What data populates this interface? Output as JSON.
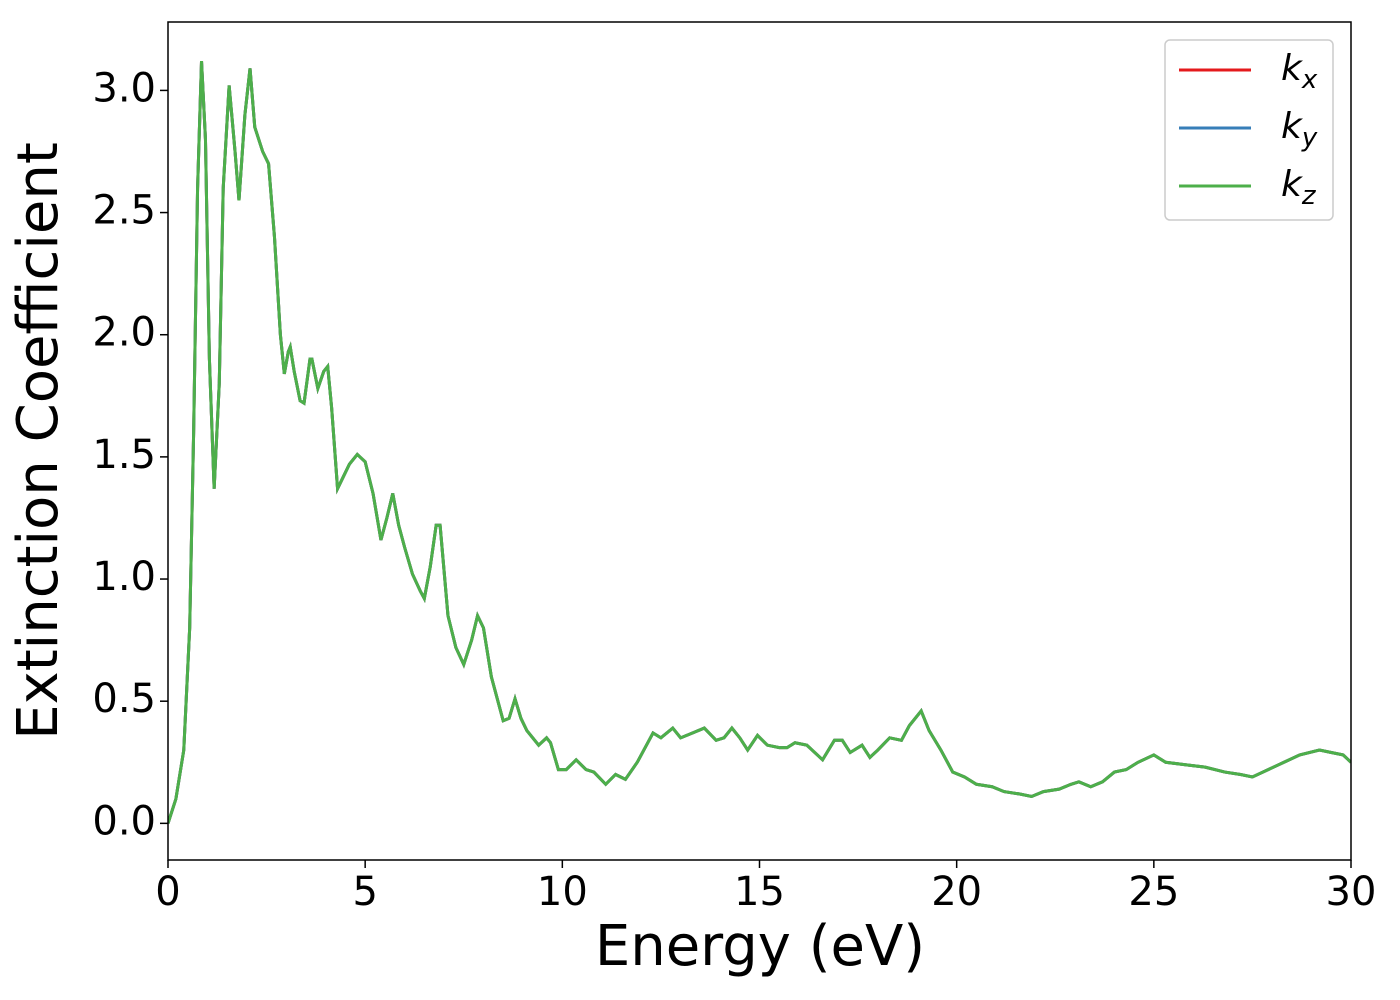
{
  "chart_data": {
    "type": "line",
    "x_label": "Energy (eV)",
    "y_label": "Extinction Coefficient",
    "x": [
      0,
      0.2,
      0.4,
      0.55,
      0.65,
      0.75,
      0.85,
      0.95,
      1.05,
      1.17,
      1.3,
      1.4,
      1.55,
      1.7,
      1.8,
      1.95,
      2.08,
      2.2,
      2.4,
      2.55,
      2.7,
      2.85,
      2.95,
      3.05,
      3.1,
      3.2,
      3.35,
      3.45,
      3.6,
      3.65,
      3.8,
      3.95,
      4.05,
      4.15,
      4.3,
      4.45,
      4.6,
      4.8,
      5.0,
      5.2,
      5.4,
      5.55,
      5.7,
      5.85,
      6.0,
      6.2,
      6.4,
      6.5,
      6.65,
      6.8,
      6.9,
      7.1,
      7.3,
      7.5,
      7.7,
      7.85,
      8.0,
      8.2,
      8.5,
      8.65,
      8.8,
      8.95,
      9.1,
      9.4,
      9.6,
      9.7,
      9.9,
      10.1,
      10.35,
      10.6,
      10.8,
      11.1,
      11.35,
      11.6,
      11.9,
      12.3,
      12.5,
      12.8,
      13.0,
      13.3,
      13.6,
      13.9,
      14.1,
      14.3,
      14.5,
      14.7,
      14.95,
      15.2,
      15.5,
      15.7,
      15.9,
      16.2,
      16.6,
      16.9,
      17.1,
      17.3,
      17.6,
      17.8,
      18.0,
      18.3,
      18.6,
      18.8,
      19.1,
      19.3,
      19.6,
      19.9,
      20.2,
      20.5,
      20.9,
      21.2,
      21.6,
      21.9,
      22.2,
      22.6,
      22.9,
      23.1,
      23.4,
      23.7,
      24.0,
      24.3,
      24.6,
      25.0,
      25.3,
      25.8,
      26.3,
      26.8,
      27.2,
      27.5,
      27.9,
      28.3,
      28.7,
      29.2,
      29.5,
      29.8,
      30.0
    ],
    "series": [
      {
        "name": "kx",
        "color": "#e41a1c",
        "values": [
          0.0,
          0.1,
          0.3,
          0.8,
          1.6,
          2.6,
          3.12,
          2.8,
          1.9,
          1.37,
          1.8,
          2.6,
          3.02,
          2.75,
          2.55,
          2.9,
          3.09,
          2.85,
          2.75,
          2.7,
          2.4,
          2.0,
          1.84,
          1.93,
          1.95,
          1.85,
          1.73,
          1.72,
          1.9,
          1.9,
          1.78,
          1.85,
          1.87,
          1.7,
          1.37,
          1.42,
          1.47,
          1.51,
          1.48,
          1.35,
          1.16,
          1.25,
          1.35,
          1.22,
          1.13,
          1.02,
          0.95,
          0.92,
          1.05,
          1.22,
          1.22,
          0.85,
          0.72,
          0.65,
          0.75,
          0.85,
          0.8,
          0.6,
          0.42,
          0.43,
          0.51,
          0.43,
          0.38,
          0.32,
          0.35,
          0.33,
          0.22,
          0.22,
          0.26,
          0.22,
          0.21,
          0.16,
          0.2,
          0.18,
          0.25,
          0.37,
          0.35,
          0.39,
          0.35,
          0.37,
          0.39,
          0.34,
          0.35,
          0.39,
          0.35,
          0.3,
          0.36,
          0.32,
          0.31,
          0.31,
          0.33,
          0.32,
          0.26,
          0.34,
          0.34,
          0.29,
          0.32,
          0.27,
          0.3,
          0.35,
          0.34,
          0.4,
          0.46,
          0.38,
          0.3,
          0.21,
          0.19,
          0.16,
          0.15,
          0.13,
          0.12,
          0.11,
          0.13,
          0.14,
          0.16,
          0.17,
          0.15,
          0.17,
          0.21,
          0.22,
          0.25,
          0.28,
          0.25,
          0.24,
          0.23,
          0.21,
          0.2,
          0.19,
          0.22,
          0.25,
          0.28,
          0.3,
          0.29,
          0.28,
          0.25
        ]
      },
      {
        "name": "ky",
        "color": "#377eb8",
        "values": [
          0.0,
          0.1,
          0.3,
          0.8,
          1.6,
          2.6,
          3.12,
          2.8,
          1.9,
          1.37,
          1.8,
          2.6,
          3.02,
          2.75,
          2.55,
          2.9,
          3.09,
          2.85,
          2.75,
          2.7,
          2.4,
          2.0,
          1.84,
          1.93,
          1.95,
          1.85,
          1.73,
          1.72,
          1.9,
          1.9,
          1.78,
          1.85,
          1.87,
          1.7,
          1.37,
          1.42,
          1.47,
          1.51,
          1.48,
          1.35,
          1.16,
          1.25,
          1.35,
          1.22,
          1.13,
          1.02,
          0.95,
          0.92,
          1.05,
          1.22,
          1.22,
          0.85,
          0.72,
          0.65,
          0.75,
          0.85,
          0.8,
          0.6,
          0.42,
          0.43,
          0.51,
          0.43,
          0.38,
          0.32,
          0.35,
          0.33,
          0.22,
          0.22,
          0.26,
          0.22,
          0.21,
          0.16,
          0.2,
          0.18,
          0.25,
          0.37,
          0.35,
          0.39,
          0.35,
          0.37,
          0.39,
          0.34,
          0.35,
          0.39,
          0.35,
          0.3,
          0.36,
          0.32,
          0.31,
          0.31,
          0.33,
          0.32,
          0.26,
          0.34,
          0.34,
          0.29,
          0.32,
          0.27,
          0.3,
          0.35,
          0.34,
          0.4,
          0.46,
          0.38,
          0.3,
          0.21,
          0.19,
          0.16,
          0.15,
          0.13,
          0.12,
          0.11,
          0.13,
          0.14,
          0.16,
          0.17,
          0.15,
          0.17,
          0.21,
          0.22,
          0.25,
          0.28,
          0.25,
          0.24,
          0.23,
          0.21,
          0.2,
          0.19,
          0.22,
          0.25,
          0.28,
          0.3,
          0.29,
          0.28,
          0.25
        ]
      },
      {
        "name": "kz",
        "color": "#4daf4a",
        "values": [
          0.0,
          0.1,
          0.3,
          0.8,
          1.6,
          2.6,
          3.12,
          2.8,
          1.9,
          1.37,
          1.8,
          2.6,
          3.02,
          2.75,
          2.55,
          2.9,
          3.09,
          2.85,
          2.75,
          2.7,
          2.4,
          2.0,
          1.84,
          1.93,
          1.95,
          1.85,
          1.73,
          1.72,
          1.9,
          1.9,
          1.78,
          1.85,
          1.87,
          1.7,
          1.37,
          1.42,
          1.47,
          1.51,
          1.48,
          1.35,
          1.16,
          1.25,
          1.35,
          1.22,
          1.13,
          1.02,
          0.95,
          0.92,
          1.05,
          1.22,
          1.22,
          0.85,
          0.72,
          0.65,
          0.75,
          0.85,
          0.8,
          0.6,
          0.42,
          0.43,
          0.51,
          0.43,
          0.38,
          0.32,
          0.35,
          0.33,
          0.22,
          0.22,
          0.26,
          0.22,
          0.21,
          0.16,
          0.2,
          0.18,
          0.25,
          0.37,
          0.35,
          0.39,
          0.35,
          0.37,
          0.39,
          0.34,
          0.35,
          0.39,
          0.35,
          0.3,
          0.36,
          0.32,
          0.31,
          0.31,
          0.33,
          0.32,
          0.26,
          0.34,
          0.34,
          0.29,
          0.32,
          0.27,
          0.3,
          0.35,
          0.34,
          0.4,
          0.46,
          0.38,
          0.3,
          0.21,
          0.19,
          0.16,
          0.15,
          0.13,
          0.12,
          0.11,
          0.13,
          0.14,
          0.16,
          0.17,
          0.15,
          0.17,
          0.21,
          0.22,
          0.25,
          0.28,
          0.25,
          0.24,
          0.23,
          0.21,
          0.2,
          0.19,
          0.22,
          0.25,
          0.28,
          0.3,
          0.29,
          0.28,
          0.25
        ]
      }
    ],
    "xlim": [
      0,
      30
    ],
    "xticks": [
      0,
      5,
      10,
      15,
      20,
      25,
      30
    ],
    "ylim": [
      -0.15,
      3.28
    ],
    "yticks": [
      {
        "value": 0,
        "label": "0.0"
      },
      0.5,
      {
        "value": 1,
        "label": "1.0"
      },
      1.5,
      {
        "value": 2,
        "label": "2.0"
      },
      2.5,
      {
        "value": 3,
        "label": "3.0"
      }
    ],
    "grid": false,
    "legend": "upper right"
  }
}
